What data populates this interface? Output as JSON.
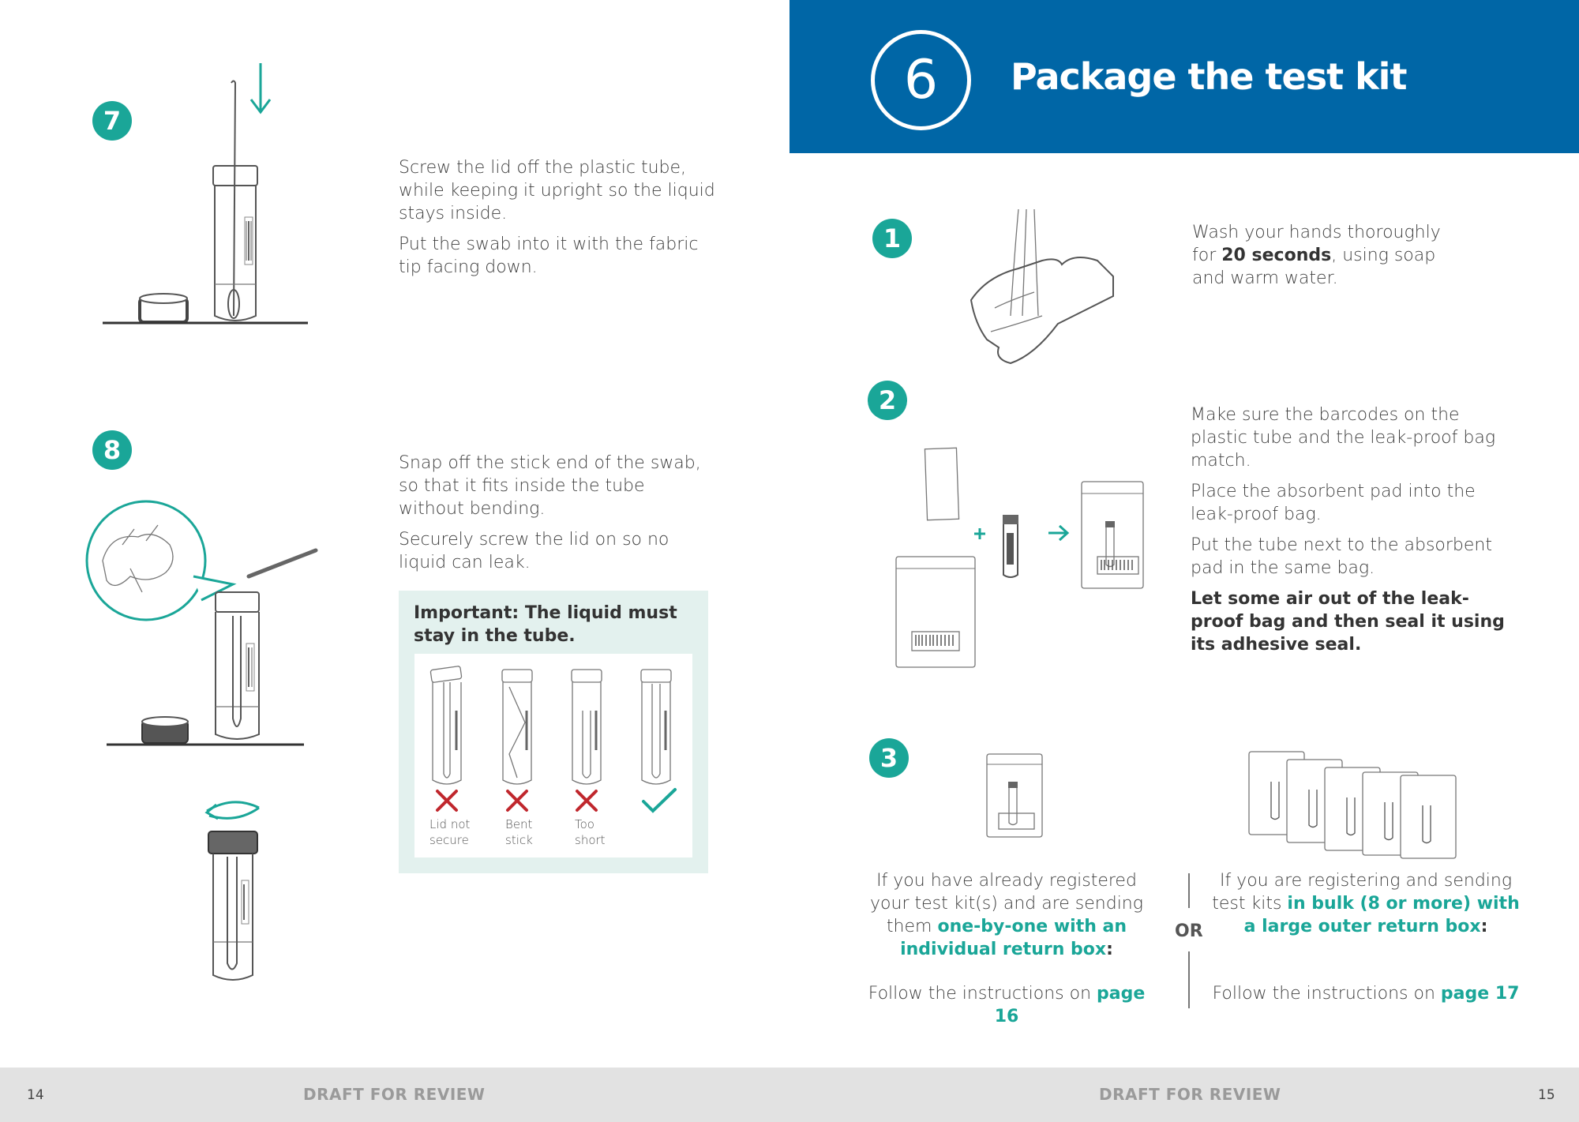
{
  "left_page": {
    "steps": [
      {
        "number": "7",
        "paragraphs": [
          "Screw the lid off the plastic tube, while keeping it upright so the liquid stays inside.",
          "Put the swab into it with the fabric tip facing down."
        ]
      },
      {
        "number": "8",
        "paragraphs": [
          "Snap off the stick end of the swab, so that it fits inside the tube without bending.",
          "Securely screw the lid on so no liquid can leak."
        ]
      }
    ],
    "important": {
      "title": "Important: The liquid must stay in the tube.",
      "labels": [
        "Lid not secure",
        "Bent stick",
        "Too short"
      ]
    },
    "page_number": "14",
    "draft": "DRAFT FOR REVIEW"
  },
  "right_page": {
    "section_number": "6",
    "section_title": "Package the test kit",
    "step1": {
      "number": "1",
      "pre": "Wash your hands thoroughly for ",
      "bold": "20 seconds",
      "post": ", using soap and warm water."
    },
    "step2": {
      "number": "2",
      "paragraphs": [
        "Make sure the barcodes on the plastic tube and the leak-proof bag match.",
        "Place the absorbent pad into the leak-proof bag.",
        "Put the tube next to the absorbent pad in the same bag."
      ],
      "bold_paragraph": "Let some air out of the leak-proof bag and then seal it using its adhesive seal."
    },
    "step3": {
      "number": "3",
      "option_a": {
        "pre": "If you have already registered your test kit(s) and are sending them ",
        "highlight": "one-by-one with an individual return box",
        "post": ":",
        "follow": "Follow the instructions on ",
        "page_ref": "page 16"
      },
      "or_label": "OR",
      "option_b": {
        "pre": "If you are registering and sending test kits ",
        "highlight": "in bulk (8 or more) with a large outer return box",
        "post": ":",
        "follow": "Follow the instructions on ",
        "page_ref": "page 17"
      }
    },
    "page_number": "15",
    "draft": "DRAFT FOR REVIEW"
  },
  "colors": {
    "teal": "#1aa698",
    "blue": "#0066a6",
    "red": "#c0272d",
    "footer": "#e2e2e2"
  }
}
